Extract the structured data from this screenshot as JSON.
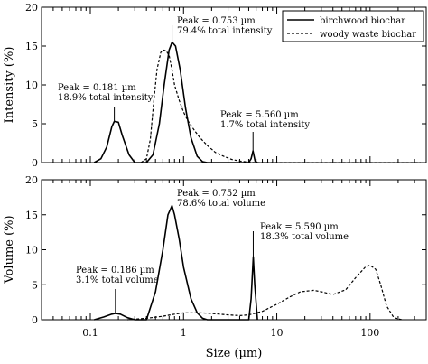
{
  "chart_data": [
    {
      "type": "line",
      "ylabel": "Intensity (%)",
      "xscale": "log",
      "xlim": [
        0.03,
        400
      ],
      "ylim": [
        0,
        20
      ],
      "yticks": [
        0,
        5,
        10,
        15,
        20
      ],
      "xticks": [],
      "grid": false,
      "legend": {
        "position": "top-right",
        "entries": [
          {
            "label": "birchwood biochar",
            "style": "solid"
          },
          {
            "label": "woody waste biochar",
            "style": "dashed"
          }
        ]
      },
      "series": [
        {
          "name": "birchwood biochar",
          "style": "solid",
          "x": [
            0.11,
            0.13,
            0.15,
            0.17,
            0.181,
            0.2,
            0.22,
            0.26,
            0.3,
            0.4,
            0.47,
            0.55,
            0.62,
            0.7,
            0.753,
            0.82,
            0.92,
            1.05,
            1.2,
            1.4,
            1.6,
            1.8,
            5.0,
            5.3,
            5.56,
            5.85,
            6.2
          ],
          "y": [
            0,
            0.5,
            2.0,
            4.6,
            5.3,
            5.2,
            3.5,
            1.0,
            0,
            0,
            1.0,
            5.0,
            10.0,
            14.5,
            15.5,
            15.0,
            12.0,
            7.0,
            3.2,
            0.8,
            0.1,
            0,
            0,
            0.5,
            1.5,
            0.2,
            0
          ]
        },
        {
          "name": "woody waste biochar",
          "style": "dashed",
          "x": [
            0.35,
            0.4,
            0.44,
            0.48,
            0.52,
            0.57,
            0.6,
            0.65,
            0.7,
            0.75,
            0.8,
            0.9,
            1.0,
            1.1,
            1.3,
            1.5,
            1.8,
            2.2,
            2.7,
            3.3,
            4.0,
            5.0,
            6.0,
            8.0,
            10,
            20,
            50,
            100,
            200,
            350
          ],
          "y": [
            0,
            0.5,
            3.0,
            8.0,
            12.0,
            14.2,
            14.5,
            14.4,
            13.8,
            12.0,
            10.0,
            8.0,
            6.5,
            5.5,
            4.2,
            3.2,
            2.2,
            1.3,
            0.8,
            0.4,
            0.2,
            0.05,
            0,
            0,
            0,
            0,
            0,
            0,
            0,
            0
          ]
        }
      ],
      "annotations": [
        {
          "lines": [
            "Peak = 0.753 µm",
            "79.4% total intensity"
          ],
          "x": 0.753,
          "y": 15.5
        },
        {
          "lines": [
            "Peak = 0.181 µm",
            "18.9% total intensity"
          ],
          "x": 0.181,
          "y": 5.3
        },
        {
          "lines": [
            "Peak = 5.560 µm",
            "1.7% total intensity"
          ],
          "x": 5.56,
          "y": 1.5
        }
      ]
    },
    {
      "type": "line",
      "xlabel": "Size (µm)",
      "ylabel": "Volume (%)",
      "xscale": "log",
      "xlim": [
        0.03,
        400
      ],
      "ylim": [
        0,
        20
      ],
      "yticks": [
        0,
        5,
        10,
        15,
        20
      ],
      "xticks": [
        0.1,
        1,
        10,
        100
      ],
      "xticklabels": [
        "0.1",
        "1",
        "10",
        "100"
      ],
      "grid": false,
      "series": [
        {
          "name": "birchwood biochar",
          "style": "solid",
          "x": [
            0.11,
            0.14,
            0.17,
            0.186,
            0.21,
            0.25,
            0.3,
            0.4,
            0.5,
            0.6,
            0.68,
            0.752,
            0.8,
            0.9,
            1.0,
            1.2,
            1.4,
            1.6,
            1.8,
            5.0,
            5.3,
            5.59,
            5.8,
            6.2
          ],
          "y": [
            0,
            0.4,
            0.8,
            0.9,
            0.8,
            0.3,
            0,
            0,
            4.0,
            10.0,
            15.0,
            16.3,
            15.0,
            11.5,
            7.5,
            3.0,
            1.0,
            0.2,
            0,
            0,
            3.0,
            9.0,
            5.0,
            0
          ]
        },
        {
          "name": "woody waste biochar",
          "style": "dashed",
          "x": [
            0.25,
            0.4,
            0.6,
            0.8,
            1.0,
            1.5,
            2.0,
            3.0,
            4.0,
            5.0,
            7.0,
            10,
            14,
            18,
            25,
            30,
            40,
            55,
            70,
            90,
            100,
            115,
            130,
            150,
            180,
            220
          ],
          "y": [
            0,
            0.2,
            0.5,
            0.8,
            1.0,
            1.0,
            0.9,
            0.7,
            0.6,
            0.7,
            1.2,
            2.2,
            3.3,
            4.0,
            4.2,
            4.0,
            3.6,
            4.3,
            6.0,
            7.6,
            7.8,
            7.2,
            5.0,
            2.0,
            0.3,
            0
          ]
        }
      ],
      "annotations": [
        {
          "lines": [
            "Peak = 0.752 µm",
            "78.6% total volume"
          ],
          "x": 0.752,
          "y": 16.3
        },
        {
          "lines": [
            "Peak = 0.186 µm",
            "3.1% total volume"
          ],
          "x": 0.186,
          "y": 0.9
        },
        {
          "lines": [
            "Peak = 5.590 µm",
            "18.3% total volume"
          ],
          "x": 5.59,
          "y": 9.0
        }
      ]
    }
  ]
}
